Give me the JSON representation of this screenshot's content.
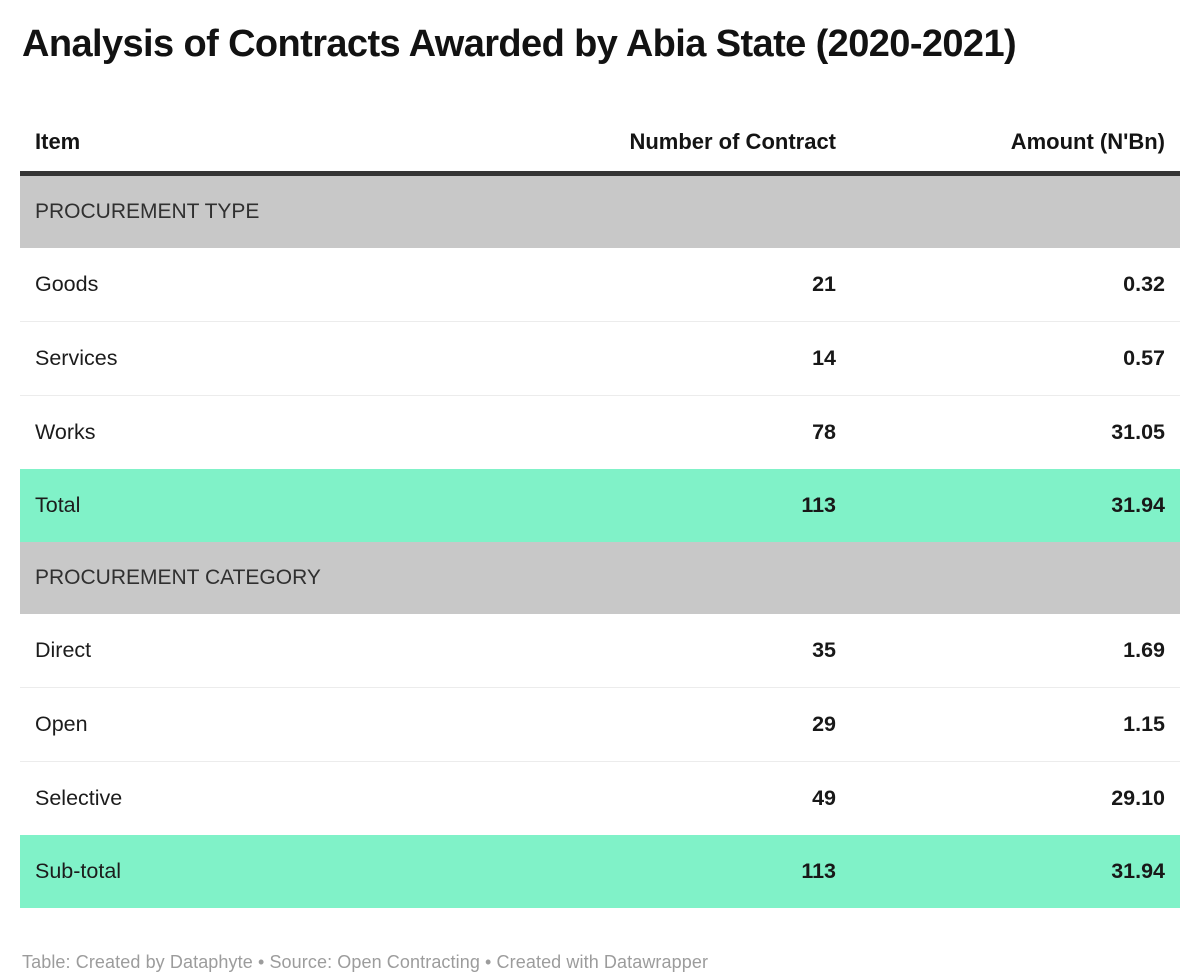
{
  "title": "Analysis of Contracts Awarded by Abia State (2020-2021)",
  "chart_data": {
    "type": "table",
    "title": "Analysis of Contracts Awarded by Abia State (2020-2021)",
    "columns": [
      "Item",
      "Number of Contract",
      "Amount (N'Bn)"
    ],
    "sections": [
      {
        "header": "PROCUREMENT TYPE",
        "rows": [
          {
            "item": "Goods",
            "contracts": "21",
            "amount": "0.32",
            "highlight": false
          },
          {
            "item": "Services",
            "contracts": "14",
            "amount": "0.57",
            "highlight": false
          },
          {
            "item": "Works",
            "contracts": "78",
            "amount": "31.05",
            "highlight": false
          },
          {
            "item": "Total",
            "contracts": "113",
            "amount": "31.94",
            "highlight": true
          }
        ]
      },
      {
        "header": "PROCUREMENT CATEGORY",
        "rows": [
          {
            "item": "Direct",
            "contracts": "35",
            "amount": "1.69",
            "highlight": false
          },
          {
            "item": "Open",
            "contracts": "29",
            "amount": "1.15",
            "highlight": false
          },
          {
            "item": "Selective",
            "contracts": "49",
            "amount": "29.10",
            "highlight": false
          },
          {
            "item": "Sub-total",
            "contracts": "113",
            "amount": "31.94",
            "highlight": true
          }
        ]
      }
    ],
    "layout": {
      "item_column_align": "left",
      "number_columns_align": "right",
      "gridlines": "horizontal-only"
    }
  },
  "footer": {
    "text": "Table: Created by Dataphyte • Source: Open Contracting • Created with Datawrapper"
  },
  "colors": {
    "highlight_row_bg": "#80f2c8",
    "section_row_bg": "#c8c8c8",
    "header_border": "#353535",
    "row_border": "#ececec",
    "footer_text": "#9c9c9c",
    "title_text": "#121212"
  }
}
